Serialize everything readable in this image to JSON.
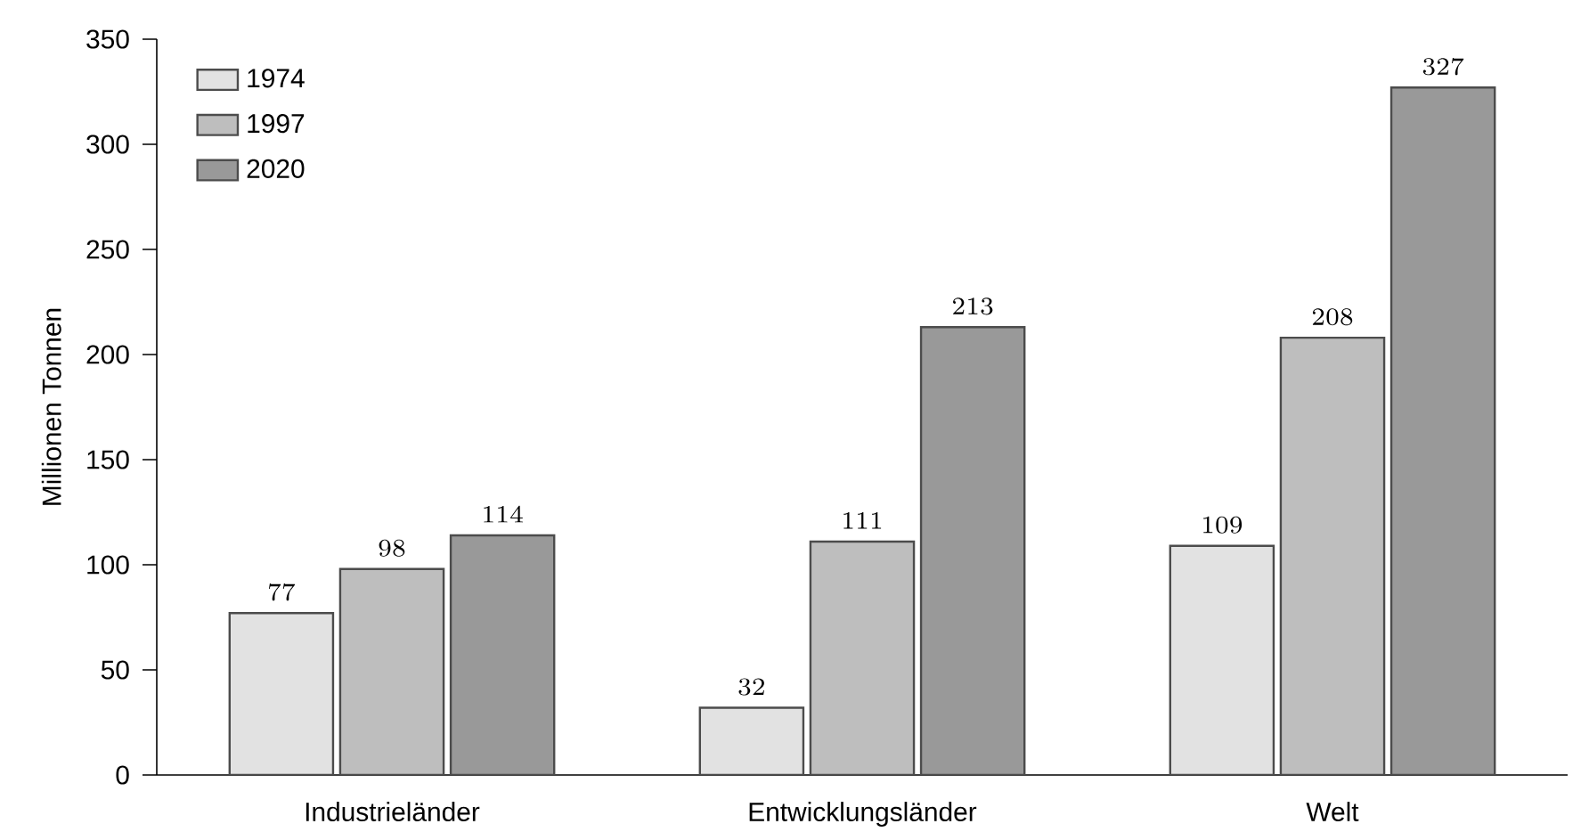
{
  "chart_data": {
    "type": "bar",
    "ylabel": "Millionen Tonnen",
    "categories": [
      "Industrieländer",
      "Entwicklungsländer",
      "Welt"
    ],
    "series": [
      {
        "name": "1974",
        "color": "#e2e2e2",
        "values": [
          77,
          32,
          109
        ]
      },
      {
        "name": "1997",
        "color": "#bebebe",
        "values": [
          98,
          111,
          208
        ]
      },
      {
        "name": "2020",
        "color": "#999999",
        "values": [
          114,
          213,
          327
        ]
      }
    ],
    "ylim": [
      0,
      350
    ],
    "yticks": [
      0,
      50,
      100,
      150,
      200,
      250,
      300,
      350
    ],
    "data_labels": true,
    "legend": "top left",
    "grid": false
  }
}
